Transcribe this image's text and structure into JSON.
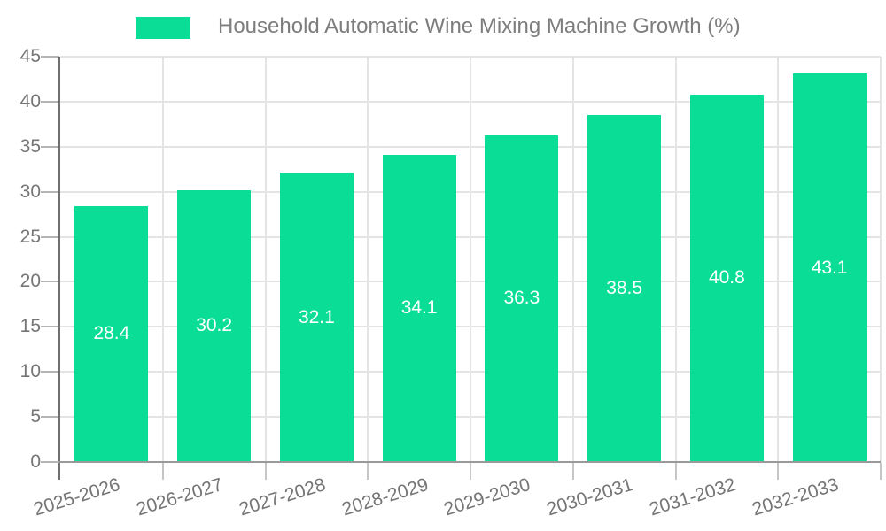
{
  "legend": {
    "position": "top"
  },
  "chart_data": {
    "type": "bar",
    "title": "Household Automatic Wine Mixing Machine Growth (%)",
    "categories": [
      "2025-2026",
      "2026-2027",
      "2027-2028",
      "2028-2029",
      "2029-2030",
      "2030-2031",
      "2031-2032",
      "2032-2033"
    ],
    "values": [
      28.4,
      30.2,
      32.1,
      34.1,
      36.3,
      38.5,
      40.8,
      43.1
    ],
    "xlabel": "",
    "ylabel": "",
    "ylim": [
      0,
      45
    ],
    "yticks": [
      0,
      5,
      10,
      15,
      20,
      25,
      30,
      35,
      40,
      45
    ],
    "grid": true,
    "legend_position": "top",
    "value_label_position": "inside-center",
    "value_label_decimals": 1,
    "colors": {
      "bar": "#0ade96",
      "value_label": "#ffffff",
      "axis_text": "#757575",
      "grid": "#e4e4e4",
      "y_axis_line": "#6f6f6f",
      "x_axis_line": "#9a9a9a"
    }
  }
}
